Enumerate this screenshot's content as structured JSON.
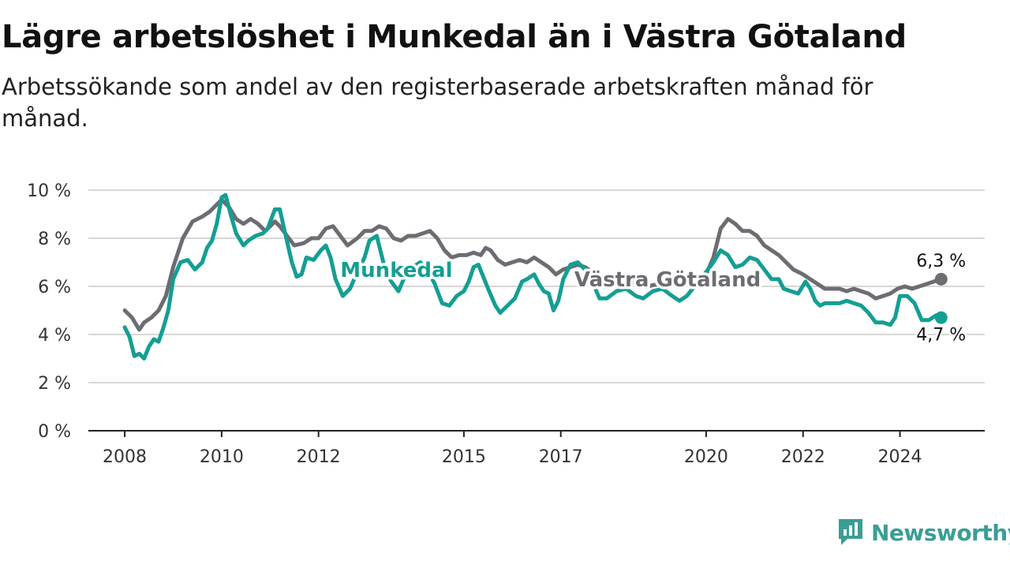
{
  "title": "Lägre arbetslöshet i Munkedal än i Västra Götaland",
  "subtitle": "Arbetssökande som andel av den registerbaserade arbetskraften månad för månad.",
  "brand": {
    "name": "Newsworthy",
    "logo_icon": "newsworthy-chart-icon",
    "color": "#3a9e95"
  },
  "chart_data": {
    "type": "line",
    "x_unit": "year",
    "y_ticks": [
      0,
      2,
      4,
      6,
      8,
      10
    ],
    "y_tick_labels": [
      "0 %",
      "2 %",
      "4 %",
      "6 %",
      "8 %",
      "10 %"
    ],
    "ylim": [
      0,
      10
    ],
    "x_ticks": [
      2008,
      2010,
      2012,
      2015,
      2017,
      2020,
      2022,
      2024
    ],
    "x_tick_labels": [
      "2008",
      "2010",
      "2012",
      "2015",
      "2017",
      "2020",
      "2022",
      "2024"
    ],
    "xlim": [
      2007.25,
      2025.75
    ],
    "grid": "horizontal",
    "legend": "inline labels",
    "series": [
      {
        "name": "Västra Götaland",
        "color": "#6d6c72",
        "end_label": "6,3 %",
        "points": [
          [
            2008.0,
            5.0
          ],
          [
            2008.15,
            4.7
          ],
          [
            2008.3,
            4.2
          ],
          [
            2008.4,
            4.5
          ],
          [
            2008.55,
            4.7
          ],
          [
            2008.7,
            5.0
          ],
          [
            2008.85,
            5.6
          ],
          [
            2009.0,
            6.8
          ],
          [
            2009.2,
            8.0
          ],
          [
            2009.4,
            8.7
          ],
          [
            2009.6,
            8.9
          ],
          [
            2009.75,
            9.1
          ],
          [
            2009.9,
            9.4
          ],
          [
            2010.0,
            9.6
          ],
          [
            2010.15,
            9.3
          ],
          [
            2010.3,
            8.8
          ],
          [
            2010.45,
            8.6
          ],
          [
            2010.6,
            8.8
          ],
          [
            2010.75,
            8.6
          ],
          [
            2010.9,
            8.3
          ],
          [
            2011.0,
            8.5
          ],
          [
            2011.1,
            8.7
          ],
          [
            2011.2,
            8.5
          ],
          [
            2011.35,
            8.1
          ],
          [
            2011.5,
            7.7
          ],
          [
            2011.7,
            7.8
          ],
          [
            2011.85,
            8.0
          ],
          [
            2012.0,
            8.0
          ],
          [
            2012.15,
            8.4
          ],
          [
            2012.3,
            8.5
          ],
          [
            2012.45,
            8.1
          ],
          [
            2012.6,
            7.7
          ],
          [
            2012.8,
            8.0
          ],
          [
            2012.95,
            8.3
          ],
          [
            2013.1,
            8.3
          ],
          [
            2013.25,
            8.5
          ],
          [
            2013.4,
            8.4
          ],
          [
            2013.55,
            8.0
          ],
          [
            2013.7,
            7.9
          ],
          [
            2013.85,
            8.1
          ],
          [
            2014.0,
            8.1
          ],
          [
            2014.15,
            8.2
          ],
          [
            2014.3,
            8.3
          ],
          [
            2014.45,
            8.0
          ],
          [
            2014.6,
            7.5
          ],
          [
            2014.75,
            7.2
          ],
          [
            2014.9,
            7.3
          ],
          [
            2015.05,
            7.3
          ],
          [
            2015.2,
            7.4
          ],
          [
            2015.35,
            7.3
          ],
          [
            2015.45,
            7.6
          ],
          [
            2015.55,
            7.5
          ],
          [
            2015.7,
            7.1
          ],
          [
            2015.85,
            6.9
          ],
          [
            2016.0,
            7.0
          ],
          [
            2016.15,
            7.1
          ],
          [
            2016.3,
            7.0
          ],
          [
            2016.45,
            7.2
          ],
          [
            2016.6,
            7.0
          ],
          [
            2016.75,
            6.8
          ],
          [
            2016.9,
            6.5
          ],
          [
            2017.05,
            6.7
          ],
          [
            2017.2,
            6.8
          ],
          [
            2017.35,
            6.9
          ],
          [
            2017.5,
            6.8
          ],
          [
            2017.65,
            6.6
          ],
          [
            2017.8,
            6.3
          ],
          [
            2018.0,
            6.3
          ],
          [
            2018.2,
            6.2
          ],
          [
            2018.4,
            6.1
          ],
          [
            2018.6,
            6.2
          ],
          [
            2018.8,
            6.0
          ],
          [
            2019.0,
            6.1
          ],
          [
            2019.2,
            6.0
          ],
          [
            2019.4,
            6.2
          ],
          [
            2019.6,
            6.3
          ],
          [
            2019.8,
            6.4
          ],
          [
            2020.0,
            6.5
          ],
          [
            2020.15,
            7.2
          ],
          [
            2020.3,
            8.4
          ],
          [
            2020.45,
            8.8
          ],
          [
            2020.6,
            8.6
          ],
          [
            2020.75,
            8.3
          ],
          [
            2020.9,
            8.3
          ],
          [
            2021.05,
            8.1
          ],
          [
            2021.2,
            7.7
          ],
          [
            2021.35,
            7.5
          ],
          [
            2021.5,
            7.3
          ],
          [
            2021.65,
            7.0
          ],
          [
            2021.8,
            6.7
          ],
          [
            2022.0,
            6.5
          ],
          [
            2022.15,
            6.3
          ],
          [
            2022.3,
            6.1
          ],
          [
            2022.45,
            5.9
          ],
          [
            2022.6,
            5.9
          ],
          [
            2022.75,
            5.9
          ],
          [
            2022.9,
            5.8
          ],
          [
            2023.05,
            5.9
          ],
          [
            2023.2,
            5.8
          ],
          [
            2023.35,
            5.7
          ],
          [
            2023.5,
            5.5
          ],
          [
            2023.65,
            5.6
          ],
          [
            2023.8,
            5.7
          ],
          [
            2023.95,
            5.9
          ],
          [
            2024.1,
            6.0
          ],
          [
            2024.25,
            5.9
          ],
          [
            2024.4,
            6.0
          ],
          [
            2024.55,
            6.1
          ],
          [
            2024.7,
            6.2
          ],
          [
            2024.85,
            6.3
          ]
        ]
      },
      {
        "name": "Munkedal",
        "color": "#159e93",
        "end_label": "4,7 %",
        "points": [
          [
            2008.0,
            4.3
          ],
          [
            2008.1,
            3.9
          ],
          [
            2008.2,
            3.1
          ],
          [
            2008.3,
            3.2
          ],
          [
            2008.4,
            3.0
          ],
          [
            2008.5,
            3.5
          ],
          [
            2008.6,
            3.8
          ],
          [
            2008.7,
            3.7
          ],
          [
            2008.8,
            4.3
          ],
          [
            2008.9,
            5.0
          ],
          [
            2009.0,
            6.3
          ],
          [
            2009.15,
            7.0
          ],
          [
            2009.3,
            7.1
          ],
          [
            2009.45,
            6.7
          ],
          [
            2009.6,
            7.0
          ],
          [
            2009.7,
            7.6
          ],
          [
            2009.8,
            7.9
          ],
          [
            2009.9,
            8.6
          ],
          [
            2010.0,
            9.7
          ],
          [
            2010.08,
            9.8
          ],
          [
            2010.2,
            8.9
          ],
          [
            2010.3,
            8.2
          ],
          [
            2010.45,
            7.7
          ],
          [
            2010.55,
            7.9
          ],
          [
            2010.7,
            8.1
          ],
          [
            2010.85,
            8.2
          ],
          [
            2010.95,
            8.4
          ],
          [
            2011.1,
            9.2
          ],
          [
            2011.2,
            9.2
          ],
          [
            2011.3,
            8.3
          ],
          [
            2011.45,
            7.0
          ],
          [
            2011.55,
            6.4
          ],
          [
            2011.65,
            6.5
          ],
          [
            2011.75,
            7.2
          ],
          [
            2011.9,
            7.1
          ],
          [
            2012.05,
            7.5
          ],
          [
            2012.15,
            7.7
          ],
          [
            2012.25,
            7.2
          ],
          [
            2012.35,
            6.3
          ],
          [
            2012.5,
            5.6
          ],
          [
            2012.65,
            5.9
          ],
          [
            2012.8,
            6.6
          ],
          [
            2012.95,
            7.2
          ],
          [
            2013.05,
            7.9
          ],
          [
            2013.2,
            8.1
          ],
          [
            2013.35,
            6.9
          ],
          [
            2013.5,
            6.2
          ],
          [
            2013.65,
            5.8
          ],
          [
            2013.8,
            6.5
          ],
          [
            2013.95,
            6.8
          ],
          [
            2014.1,
            7.0
          ],
          [
            2014.25,
            6.7
          ],
          [
            2014.4,
            6.1
          ],
          [
            2014.55,
            5.3
          ],
          [
            2014.7,
            5.2
          ],
          [
            2014.85,
            5.6
          ],
          [
            2015.0,
            5.8
          ],
          [
            2015.1,
            6.2
          ],
          [
            2015.2,
            6.8
          ],
          [
            2015.3,
            6.9
          ],
          [
            2015.4,
            6.4
          ],
          [
            2015.5,
            5.9
          ],
          [
            2015.65,
            5.2
          ],
          [
            2015.75,
            4.9
          ],
          [
            2015.9,
            5.2
          ],
          [
            2016.05,
            5.5
          ],
          [
            2016.2,
            6.2
          ],
          [
            2016.3,
            6.3
          ],
          [
            2016.45,
            6.5
          ],
          [
            2016.55,
            6.1
          ],
          [
            2016.65,
            5.8
          ],
          [
            2016.75,
            5.7
          ],
          [
            2016.85,
            5.0
          ],
          [
            2016.95,
            5.4
          ],
          [
            2017.05,
            6.3
          ],
          [
            2017.2,
            6.9
          ],
          [
            2017.35,
            7.0
          ],
          [
            2017.5,
            6.7
          ],
          [
            2017.65,
            6.2
          ],
          [
            2017.8,
            5.5
          ],
          [
            2017.95,
            5.5
          ],
          [
            2018.15,
            5.8
          ],
          [
            2018.35,
            5.9
          ],
          [
            2018.55,
            5.6
          ],
          [
            2018.7,
            5.5
          ],
          [
            2018.9,
            5.8
          ],
          [
            2019.1,
            5.9
          ],
          [
            2019.3,
            5.6
          ],
          [
            2019.45,
            5.4
          ],
          [
            2019.6,
            5.6
          ],
          [
            2019.8,
            6.1
          ],
          [
            2020.0,
            6.6
          ],
          [
            2020.15,
            7.0
          ],
          [
            2020.3,
            7.5
          ],
          [
            2020.45,
            7.3
          ],
          [
            2020.6,
            6.8
          ],
          [
            2020.75,
            6.9
          ],
          [
            2020.9,
            7.2
          ],
          [
            2021.05,
            7.1
          ],
          [
            2021.2,
            6.7
          ],
          [
            2021.35,
            6.3
          ],
          [
            2021.5,
            6.3
          ],
          [
            2021.6,
            5.9
          ],
          [
            2021.75,
            5.8
          ],
          [
            2021.9,
            5.7
          ],
          [
            2022.05,
            6.2
          ],
          [
            2022.15,
            5.9
          ],
          [
            2022.25,
            5.4
          ],
          [
            2022.35,
            5.2
          ],
          [
            2022.45,
            5.3
          ],
          [
            2022.6,
            5.3
          ],
          [
            2022.75,
            5.3
          ],
          [
            2022.9,
            5.4
          ],
          [
            2023.05,
            5.3
          ],
          [
            2023.2,
            5.2
          ],
          [
            2023.35,
            4.9
          ],
          [
            2023.5,
            4.5
          ],
          [
            2023.65,
            4.5
          ],
          [
            2023.8,
            4.4
          ],
          [
            2023.9,
            4.7
          ],
          [
            2024.0,
            5.6
          ],
          [
            2024.15,
            5.6
          ],
          [
            2024.3,
            5.3
          ],
          [
            2024.45,
            4.6
          ],
          [
            2024.6,
            4.6
          ],
          [
            2024.75,
            4.8
          ],
          [
            2024.85,
            4.7
          ]
        ]
      }
    ]
  }
}
